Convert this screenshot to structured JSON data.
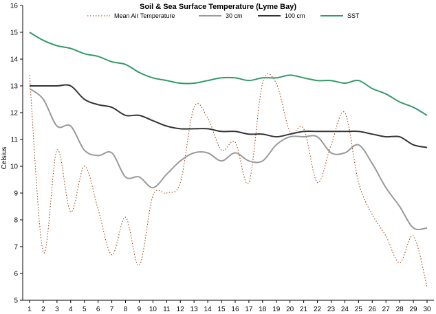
{
  "chart_data": {
    "type": "line",
    "title": "Soil & Sea Surface Temperature (Lyme Bay)",
    "xlabel": "",
    "ylabel": "Celsius",
    "x": [
      1,
      2,
      3,
      4,
      5,
      6,
      7,
      8,
      9,
      10,
      11,
      12,
      13,
      14,
      15,
      16,
      17,
      18,
      19,
      20,
      21,
      22,
      23,
      24,
      25,
      26,
      27,
      28,
      29,
      30
    ],
    "ylim": [
      5,
      16
    ],
    "yticks": [
      5,
      6,
      7,
      8,
      9,
      10,
      11,
      12,
      13,
      14,
      15,
      16
    ],
    "grid": false,
    "legend_position": "top",
    "series": [
      {
        "name": "Mean Air Temperature",
        "color": "#993300",
        "style": "dotted",
        "values": [
          13.4,
          6.8,
          10.6,
          8.3,
          10.0,
          8.4,
          6.7,
          8.1,
          6.3,
          8.9,
          9.0,
          9.4,
          12.2,
          11.8,
          10.6,
          10.9,
          9.4,
          13.1,
          13.1,
          11.3,
          11.4,
          9.4,
          10.8,
          12.0,
          9.4,
          8.2,
          7.4,
          6.4,
          7.4,
          5.5
        ]
      },
      {
        "name": "30 cm",
        "color": "#999999",
        "style": "solid",
        "values": [
          12.9,
          12.5,
          11.5,
          11.5,
          10.6,
          10.4,
          10.5,
          9.6,
          9.6,
          9.2,
          9.7,
          10.2,
          10.5,
          10.5,
          10.2,
          10.5,
          10.2,
          10.2,
          10.8,
          11.1,
          11.1,
          11.1,
          10.5,
          10.5,
          10.8,
          10.1,
          9.2,
          8.5,
          7.7,
          7.7
        ]
      },
      {
        "name": "100 cm",
        "color": "#333333",
        "style": "solid",
        "values": [
          13.0,
          13.0,
          13.0,
          13.0,
          12.5,
          12.3,
          12.2,
          11.9,
          11.9,
          11.7,
          11.5,
          11.4,
          11.4,
          11.4,
          11.3,
          11.3,
          11.2,
          11.2,
          11.1,
          11.2,
          11.3,
          11.3,
          11.3,
          11.3,
          11.3,
          11.2,
          11.1,
          11.1,
          10.8,
          10.7
        ]
      },
      {
        "name": "SST",
        "color": "#339966",
        "style": "solid",
        "values": [
          15.0,
          14.7,
          14.5,
          14.4,
          14.2,
          14.1,
          13.9,
          13.8,
          13.5,
          13.3,
          13.2,
          13.1,
          13.1,
          13.2,
          13.3,
          13.3,
          13.2,
          13.3,
          13.3,
          13.4,
          13.3,
          13.2,
          13.2,
          13.1,
          13.2,
          12.9,
          12.7,
          12.4,
          12.2,
          11.9
        ]
      }
    ]
  }
}
